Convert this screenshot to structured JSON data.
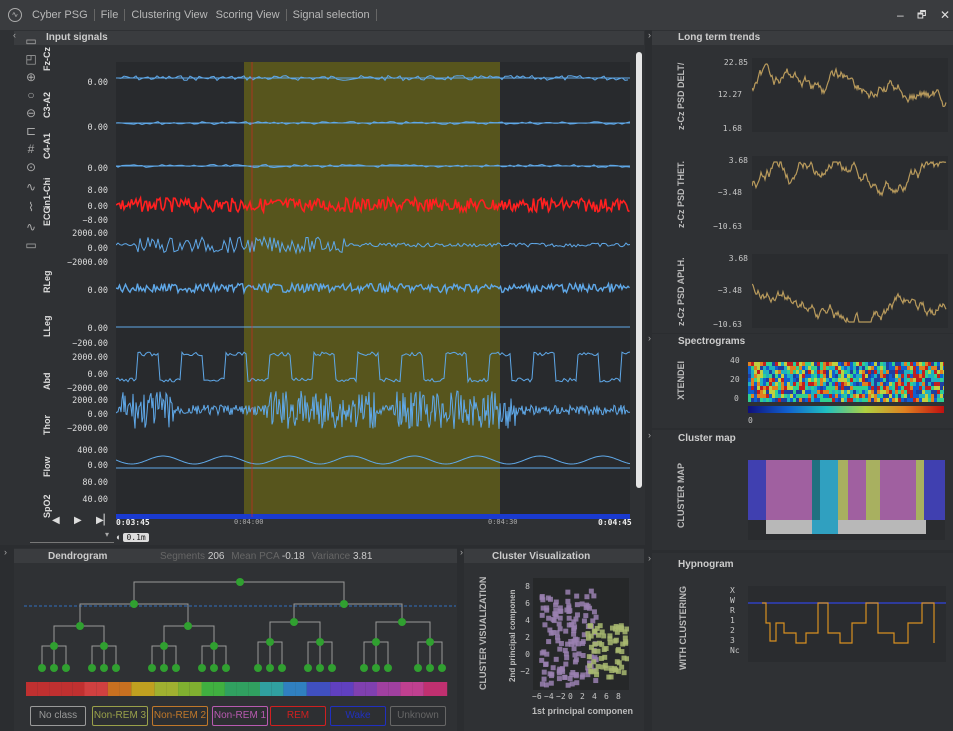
{
  "titlebar": {
    "app": "Cyber PSG",
    "menus": [
      "File",
      "Clustering View",
      "Scoring View",
      "Signal selection"
    ],
    "min": "–",
    "restore": "🗗",
    "close": "✕"
  },
  "input": {
    "title": "Input signals",
    "channels": [
      {
        "name": "Fz-Cz",
        "values": [
          "0.00"
        ]
      },
      {
        "name": "C3-A2",
        "values": [
          "0.00"
        ]
      },
      {
        "name": "C4-A1",
        "values": [
          "0.00"
        ]
      },
      {
        "name": "in1-Chi",
        "values": [
          "8.00",
          "0.00",
          "−8.00"
        ]
      },
      {
        "name": "ECG",
        "values": [
          "2000.00",
          "0.00",
          "−2000.00"
        ]
      },
      {
        "name": "RLeg",
        "values": [
          "0.00"
        ]
      },
      {
        "name": "LLeg",
        "values": [
          "0.00",
          "−200.00"
        ]
      },
      {
        "name": "Abd",
        "values": [
          "2000.00",
          "0.00",
          "−2000.00"
        ]
      },
      {
        "name": "Thor",
        "values": [
          "2000.00",
          "0.00",
          "−2000.00"
        ]
      },
      {
        "name": "Flow",
        "values": [
          "400.00",
          "0.00"
        ]
      },
      {
        "name": "SpO2",
        "values": [
          "80.00",
          "40.00"
        ]
      }
    ],
    "time_start": "0:03:45",
    "time_mid1": "0:04:00",
    "time_mid2": "0:04:30",
    "time_end": "0:04:45",
    "zoom": "0.1m",
    "play_prev": "◀",
    "play": "▶",
    "play_next": "▶▏"
  },
  "trends": {
    "title": "Long term trends",
    "plots": [
      {
        "label": "z-Cz PSD DELT/",
        "ticks": [
          "22.85",
          "12.27",
          "1.68"
        ]
      },
      {
        "label": "z-Cz PSD THET.",
        "ticks": [
          "3.68",
          "−3.48",
          "−10.63"
        ]
      },
      {
        "label": "z-Cz PSD APLH.",
        "ticks": [
          "3.68",
          "−3.48",
          "−10.63"
        ]
      }
    ]
  },
  "spectro": {
    "title": "Spectrograms",
    "label": "XTENDEI",
    "ticks": [
      "40",
      "20",
      "0"
    ],
    "cbar_tick": "0"
  },
  "clustermap": {
    "title": "Cluster map",
    "label": "CLUSTER MAP"
  },
  "hypnogram": {
    "title": "Hypnogram",
    "label": "WITH CLUSTERING",
    "stages": [
      "X",
      "W",
      "R",
      "1",
      "2",
      "3",
      "Nc"
    ]
  },
  "dendrogram": {
    "title": "Dendrogram",
    "seg_label": "Segments",
    "seg_value": "206",
    "pca_label": "Mean PCA",
    "pca_value": "-0.18",
    "var_label": "Variance",
    "var_value": "3.81"
  },
  "legend": {
    "buttons": [
      {
        "label": "No class",
        "color": "#9a9a9a"
      },
      {
        "label": "Non-REM 3",
        "color": "#9aa04a"
      },
      {
        "label": "Non-REM 2",
        "color": "#c0782a"
      },
      {
        "label": "Non-REM 1",
        "color": "#b85ab0"
      },
      {
        "label": "REM",
        "color": "#d02020"
      },
      {
        "label": "Wake",
        "color": "#2030c0"
      },
      {
        "label": "Unknown",
        "color": "#666666"
      }
    ]
  },
  "clustervis": {
    "title": "Cluster Visualization",
    "side": "CLUSTER VISUALIZATION",
    "ylabel": "2nd principal componen",
    "xlabel": "1st principal componen",
    "yticks": [
      "8",
      "6",
      "4",
      "2",
      "0",
      "−2"
    ],
    "xticks": [
      "−6",
      "−4",
      "−2",
      "0",
      "2",
      "4",
      "6",
      "8"
    ]
  }
}
